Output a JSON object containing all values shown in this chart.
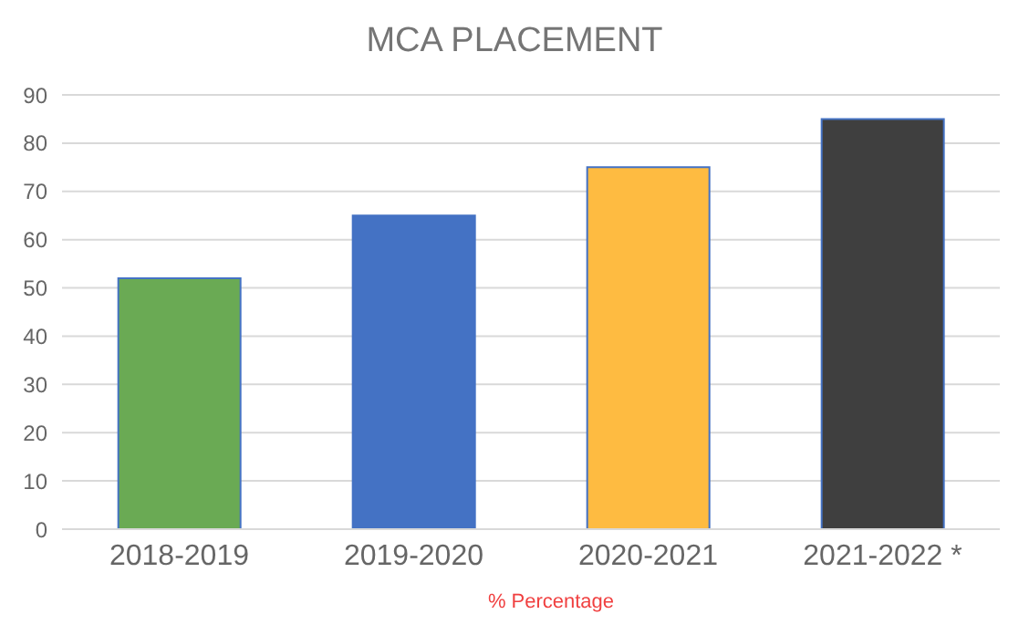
{
  "chart_data": {
    "type": "bar",
    "title": "MCA PLACEMENT",
    "xlabel": "% Percentage",
    "categories": [
      "2018-2019",
      "2019-2020",
      "2020-2021",
      "2021-2022 *"
    ],
    "values": [
      52,
      65,
      75,
      85
    ],
    "colors": [
      "#6aaa54",
      "#4472c4",
      "#febb41",
      "#3f3f3f"
    ],
    "ylim": [
      0,
      90
    ],
    "yticks": [
      0,
      10,
      20,
      30,
      40,
      50,
      60,
      70,
      80,
      90
    ],
    "grid": "y"
  }
}
